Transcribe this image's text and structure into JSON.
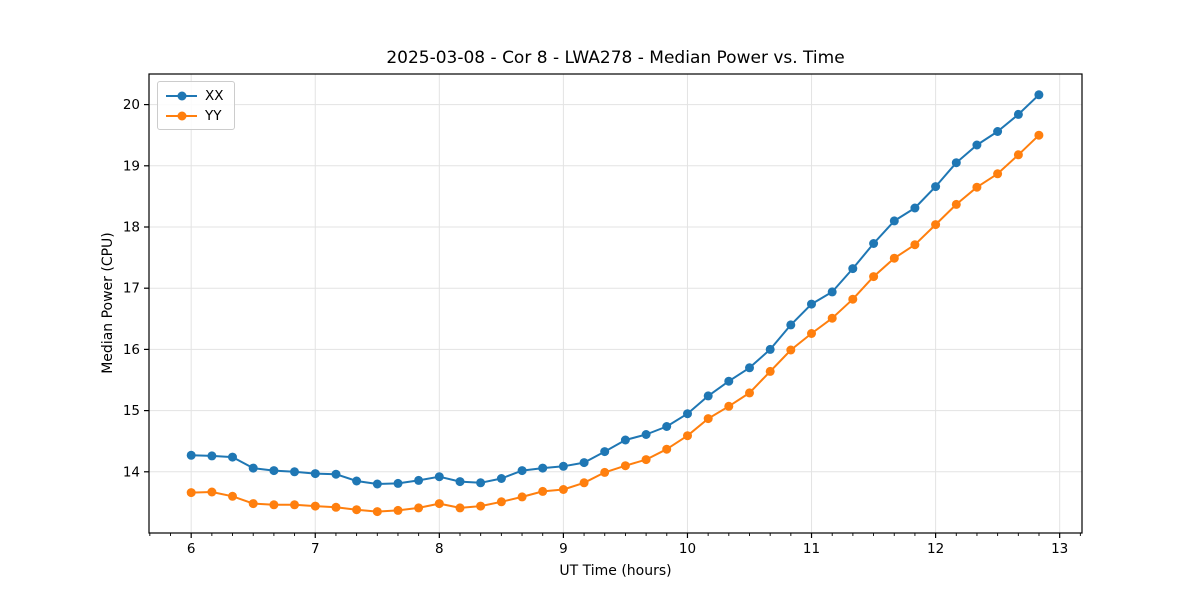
{
  "figure": {
    "background": "#ffffff",
    "text_color": "#000000",
    "spine_color": "#000000"
  },
  "chart_data": {
    "type": "line",
    "title": "2025-03-08 - Cor 8 - LWA278 - Median Power vs. Time",
    "xlabel": "UT Time (hours)",
    "ylabel": "Median Power (CPU)",
    "xlim": [
      5.66,
      13.18
    ],
    "ylim": [
      13.0,
      20.5
    ],
    "x_ticks": [
      6,
      7,
      8,
      9,
      10,
      11,
      12,
      13
    ],
    "y_ticks": [
      14,
      15,
      16,
      17,
      18,
      19,
      20
    ],
    "x_minor_tick_step": 0.1666667,
    "grid": true,
    "grid_color": "#e3e3e3",
    "legend_position": "upper left",
    "x": [
      6.0,
      6.167,
      6.333,
      6.5,
      6.667,
      6.833,
      7.0,
      7.167,
      7.333,
      7.5,
      7.667,
      7.833,
      8.0,
      8.167,
      8.333,
      8.5,
      8.667,
      8.833,
      9.0,
      9.167,
      9.333,
      9.5,
      9.667,
      9.833,
      10.0,
      10.167,
      10.333,
      10.5,
      10.667,
      10.833,
      11.0,
      11.167,
      11.333,
      11.5,
      11.667,
      11.833,
      12.0,
      12.167,
      12.333,
      12.5,
      12.667,
      12.833
    ],
    "series": [
      {
        "name": "XX",
        "color": "#1f77b4",
        "values": [
          14.27,
          14.26,
          14.24,
          14.06,
          14.02,
          14.0,
          13.97,
          13.96,
          13.85,
          13.8,
          13.81,
          13.86,
          13.92,
          13.84,
          13.82,
          13.89,
          14.02,
          14.06,
          14.09,
          14.15,
          14.33,
          14.52,
          14.61,
          14.74,
          14.95,
          15.24,
          15.48,
          15.7,
          16.0,
          16.4,
          16.74,
          16.94,
          17.32,
          17.73,
          18.1,
          18.31,
          18.66,
          19.05,
          19.34,
          19.56,
          19.84,
          20.16
        ]
      },
      {
        "name": "YY",
        "color": "#ff7f0e",
        "values": [
          13.66,
          13.67,
          13.6,
          13.48,
          13.46,
          13.46,
          13.44,
          13.42,
          13.38,
          13.35,
          13.37,
          13.41,
          13.48,
          13.41,
          13.44,
          13.51,
          13.59,
          13.68,
          13.71,
          13.82,
          13.99,
          14.1,
          14.2,
          14.37,
          14.59,
          14.87,
          15.07,
          15.29,
          15.64,
          15.99,
          16.26,
          16.51,
          16.82,
          17.19,
          17.49,
          17.71,
          18.04,
          18.37,
          18.65,
          18.87,
          19.18,
          19.5
        ]
      }
    ]
  }
}
